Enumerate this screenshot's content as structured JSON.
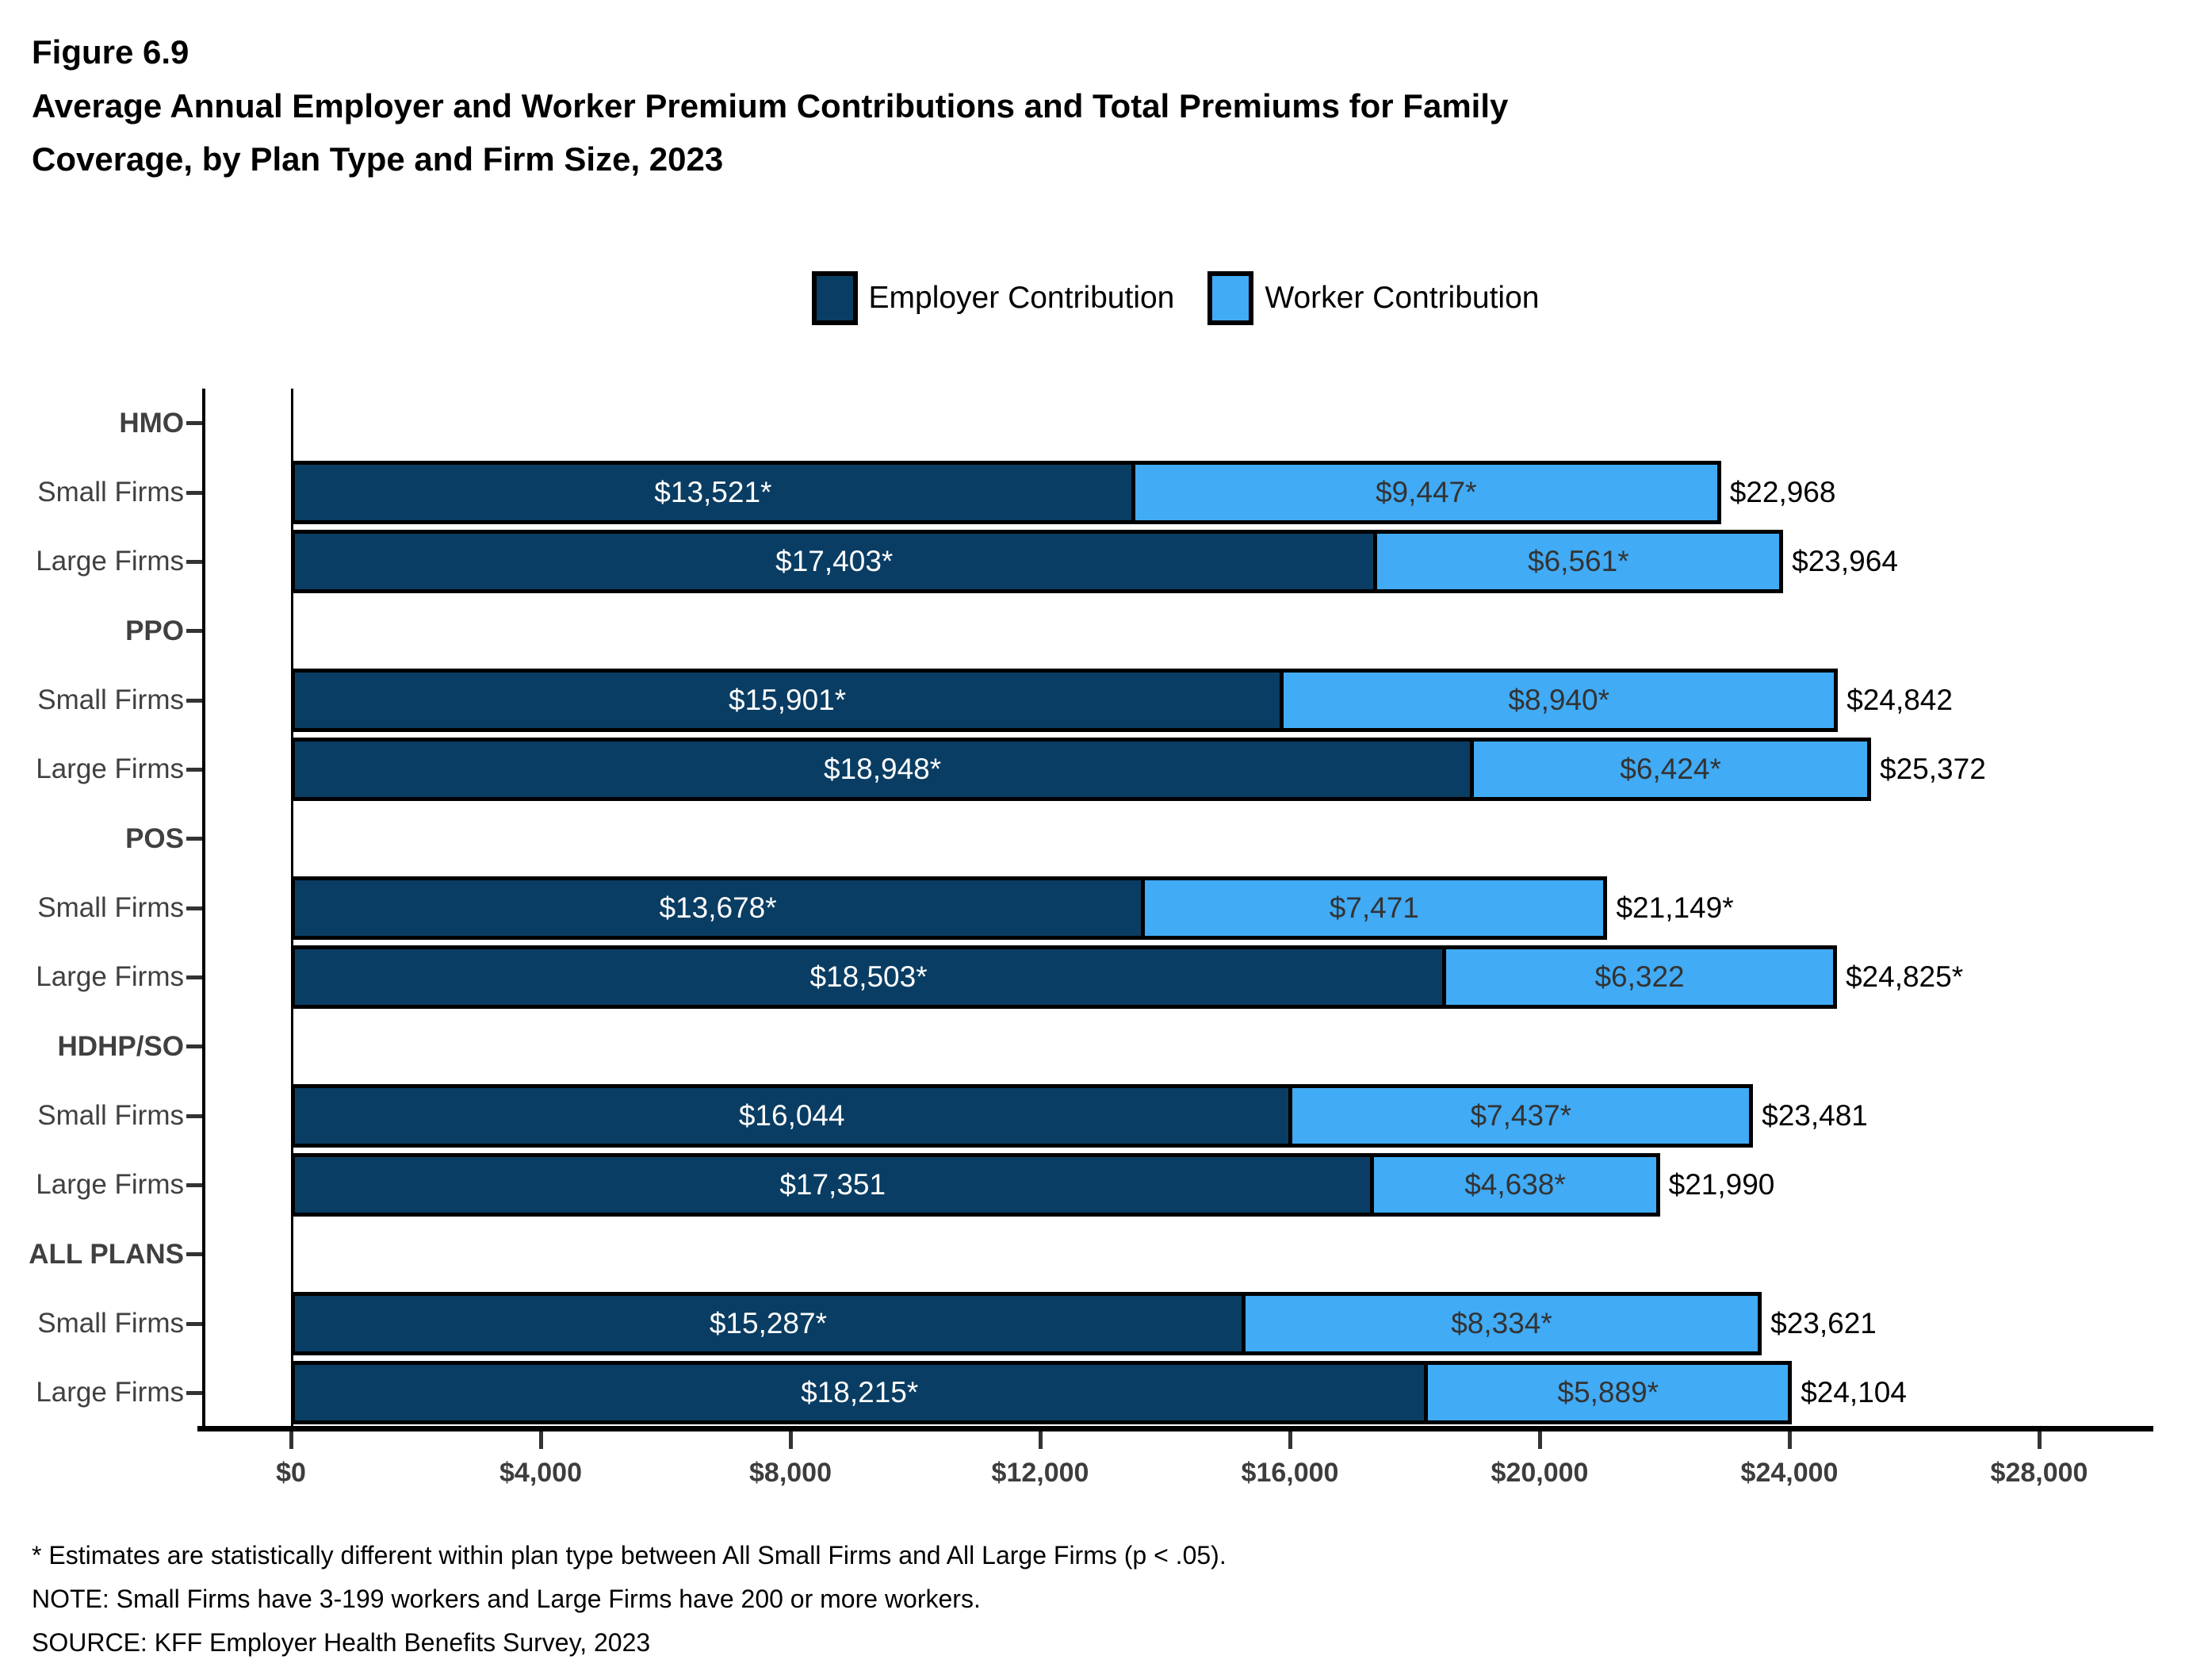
{
  "figure_label": "Figure 6.9",
  "title_lines": [
    "Average Annual Employer and Worker Premium Contributions and Total Premiums for Family",
    "Coverage, by Plan Type and Firm Size, 2023"
  ],
  "legend": {
    "items": [
      {
        "label": "Employer Contribution",
        "color": "#0A3D63"
      },
      {
        "label": "Worker Contribution",
        "color": "#41ABF5"
      }
    ]
  },
  "chart_data": {
    "type": "bar",
    "orientation": "horizontal",
    "stacked": true,
    "series_names": [
      "Employer Contribution",
      "Worker Contribution"
    ],
    "colors": {
      "employer": "#0A3D63",
      "worker": "#41ABF5"
    },
    "x_axis": {
      "tick_labels": [
        "$0",
        "$4,000",
        "$8,000",
        "$12,000",
        "$16,000",
        "$20,000",
        "$24,000",
        "$28,000"
      ],
      "tick_values": [
        0,
        4000,
        8000,
        12000,
        16000,
        20000,
        24000,
        28000
      ],
      "axis_max": 29600,
      "grid": false
    },
    "legend_position": "top",
    "groups": [
      {
        "label": "HMO",
        "rows": [
          {
            "label": "Small Firms",
            "employer": 13521,
            "employer_label": "$13,521*",
            "worker": 9447,
            "worker_label": "$9,447*",
            "total": 22968,
            "total_label": "$22,968"
          },
          {
            "label": "Large Firms",
            "employer": 17403,
            "employer_label": "$17,403*",
            "worker": 6561,
            "worker_label": "$6,561*",
            "total": 23964,
            "total_label": "$23,964"
          }
        ]
      },
      {
        "label": "PPO",
        "rows": [
          {
            "label": "Small Firms",
            "employer": 15901,
            "employer_label": "$15,901*",
            "worker": 8940,
            "worker_label": "$8,940*",
            "total": 24842,
            "total_label": "$24,842"
          },
          {
            "label": "Large Firms",
            "employer": 18948,
            "employer_label": "$18,948*",
            "worker": 6424,
            "worker_label": "$6,424*",
            "total": 25372,
            "total_label": "$25,372"
          }
        ]
      },
      {
        "label": "POS",
        "rows": [
          {
            "label": "Small Firms",
            "employer": 13678,
            "employer_label": "$13,678*",
            "worker": 7471,
            "worker_label": "$7,471",
            "total": 21149,
            "total_label": "$21,149*"
          },
          {
            "label": "Large Firms",
            "employer": 18503,
            "employer_label": "$18,503*",
            "worker": 6322,
            "worker_label": "$6,322",
            "total": 24825,
            "total_label": "$24,825*"
          }
        ]
      },
      {
        "label": "HDHP/SO",
        "rows": [
          {
            "label": "Small Firms",
            "employer": 16044,
            "employer_label": "$16,044",
            "worker": 7437,
            "worker_label": "$7,437*",
            "total": 23481,
            "total_label": "$23,481"
          },
          {
            "label": "Large Firms",
            "employer": 17351,
            "employer_label": "$17,351",
            "worker": 4638,
            "worker_label": "$4,638*",
            "total": 21990,
            "total_label": "$21,990"
          }
        ]
      },
      {
        "label": "ALL PLANS",
        "rows": [
          {
            "label": "Small Firms",
            "employer": 15287,
            "employer_label": "$15,287*",
            "worker": 8334,
            "worker_label": "$8,334*",
            "total": 23621,
            "total_label": "$23,621"
          },
          {
            "label": "Large Firms",
            "employer": 18215,
            "employer_label": "$18,215*",
            "worker": 5889,
            "worker_label": "$5,889*",
            "total": 24104,
            "total_label": "$24,104"
          }
        ]
      }
    ]
  },
  "footnotes": [
    "* Estimates are statistically different within plan type between All Small Firms and All Large Firms (p < .05).",
    "NOTE: Small Firms have 3-199 workers and Large Firms have 200 or more workers.",
    "SOURCE: KFF Employer Health Benefits Survey, 2023"
  ]
}
